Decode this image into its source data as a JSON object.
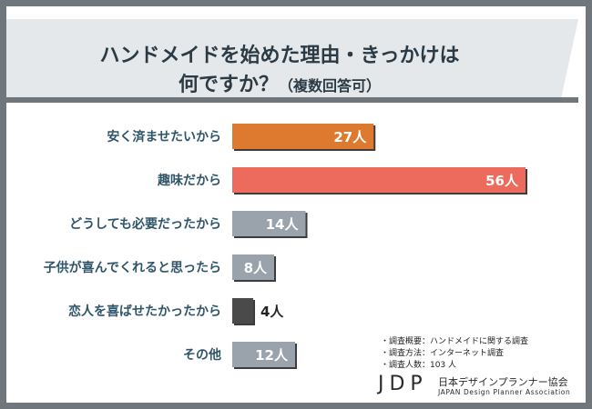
{
  "title": {
    "line1": "ハンドメイドを始めた理由・きっかけは",
    "line2_main": "何ですか？",
    "line2_sub": "（複数回答可）"
  },
  "chart_data": {
    "type": "bar",
    "orientation": "horizontal",
    "categories": [
      "安く済ませたいから",
      "趣味だから",
      "どうしても必要だったから",
      "子供が喜んでくれると思ったら",
      "恋人を喜ばせたかったから",
      "その他"
    ],
    "values": [
      27,
      56,
      14,
      8,
      4,
      12
    ],
    "value_labels": [
      "27人",
      "56人",
      "14人",
      "8人",
      "4人",
      "12人"
    ],
    "bar_colors": [
      "#dd7a2f",
      "#ec6b5c",
      "#9aa3ab",
      "#9aa3ab",
      "#4a4a4a",
      "#9aa3ab"
    ],
    "xlim": [
      0,
      60
    ],
    "grid": false
  },
  "notes": [
    "・調査概要：ハンドメイドに関する調査",
    "・調査方法：インターネット調査",
    "・調査人数：103 人"
  ],
  "logo": {
    "mark": "JDP",
    "name_ja": "日本デザインプランナー協会",
    "name_en": "JAPAN Design Planner Association"
  },
  "colors": {
    "frame": "#6f767c",
    "title_band": "#e4e8ea",
    "title_text": "#2b3a44",
    "category_text": "#2f5569"
  }
}
